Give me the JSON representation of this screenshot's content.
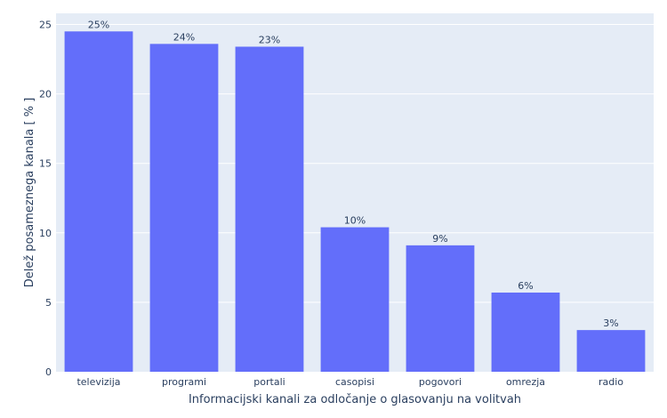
{
  "chart_data": {
    "type": "bar",
    "categories": [
      "televizija",
      "programi",
      "portali",
      "casopisi",
      "pogovori",
      "omrezja",
      "radio"
    ],
    "values": [
      24.5,
      23.6,
      23.4,
      10.4,
      9.1,
      5.7,
      3.0
    ],
    "value_labels": [
      "25%",
      "24%",
      "23%",
      "10%",
      "9%",
      "6%",
      "3%"
    ],
    "xlabel": "Informacijski kanali za odločanje o glasovanju na volitvah",
    "ylabel": "Delež posameznega kanala [ % ]",
    "ylim": [
      0,
      25.8
    ],
    "yticks": [
      0,
      5,
      10,
      15,
      20,
      25
    ],
    "bar_color": "#636efa",
    "plot_bg_color": "#e5ecf6",
    "grid_color": "#ffffff",
    "text_color": "#2a3f5f",
    "grid": true
  }
}
